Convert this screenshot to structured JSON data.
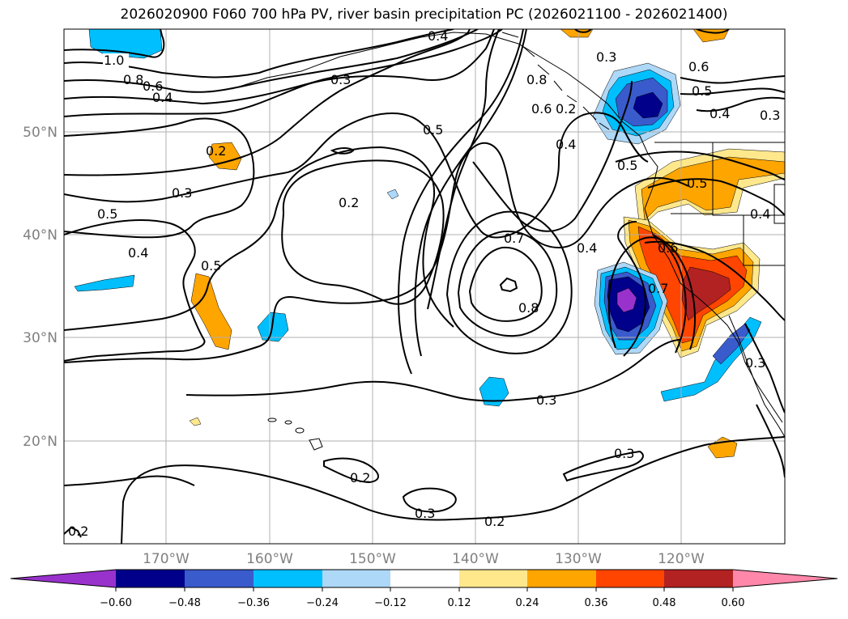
{
  "title": "2026020900 F060 700 hPa PV, river basin precipitation PC (2026021100 - 2026021400)",
  "lat_labels": [
    "50°N",
    "40°N",
    "30°N",
    "20°N"
  ],
  "lon_labels": [
    "170°W",
    "160°W",
    "150°W",
    "140°W",
    "130°W",
    "120°W"
  ],
  "colorbar": {
    "colors": [
      "#9932cc",
      "#00008b",
      "#3a5bcc",
      "#00bfff",
      "#add8f8",
      "#ffffff",
      "#ffe88c",
      "#ffa500",
      "#ff4500",
      "#b22222",
      "#ff88aa"
    ],
    "ticks": [
      "−0.60",
      "−0.48",
      "−0.36",
      "−0.24",
      "−0.12",
      "0.12",
      "0.24",
      "0.36",
      "0.48",
      "0.60"
    ]
  },
  "contour_labels": [
    "1.0",
    "0.8",
    "0.6",
    "0.4",
    "0.4",
    "0.3",
    "0.3",
    "0.2",
    "0.2",
    "0.5",
    "0.5",
    "0.4",
    "0.5",
    "0.2",
    "0.7",
    "0.8",
    "0.4",
    "0.3",
    "0.8",
    "0.6",
    "0.6",
    "0.5",
    "0.4",
    "0.3",
    "0.4",
    "0.5",
    "0.5",
    "0.4",
    "0.6",
    "0.7",
    "0.3",
    "0.3",
    "0.2",
    "0.2",
    "0.3",
    "0.2",
    "0.3"
  ]
}
